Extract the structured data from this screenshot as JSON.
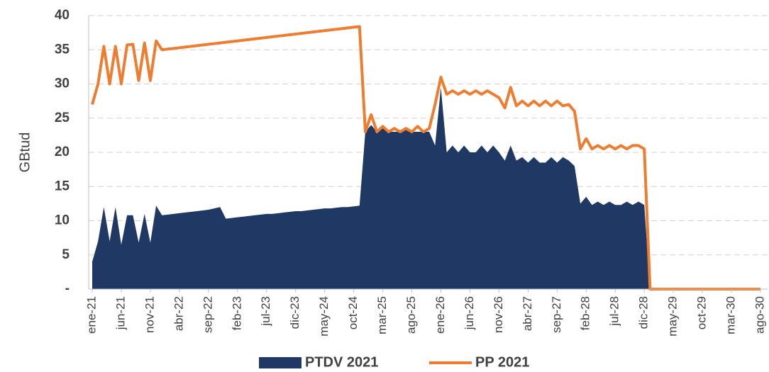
{
  "chart_data": {
    "type": "area",
    "y_label": "GBtud",
    "categories": [
      "ene-21",
      null,
      null,
      null,
      null,
      "jun-21",
      null,
      null,
      null,
      null,
      "nov-21",
      null,
      null,
      null,
      null,
      "abr-22",
      null,
      null,
      null,
      null,
      "sep-22",
      null,
      null,
      null,
      null,
      "feb-23",
      null,
      null,
      null,
      null,
      "jul-23",
      null,
      null,
      null,
      null,
      "dic-23",
      null,
      null,
      null,
      null,
      "may-24",
      null,
      null,
      null,
      null,
      "oct-24",
      null,
      null,
      null,
      null,
      "mar-25",
      null,
      null,
      null,
      null,
      "ago-25",
      null,
      null,
      null,
      null,
      "ene-26",
      null,
      null,
      null,
      null,
      "jun-26",
      null,
      null,
      null,
      null,
      "nov-26",
      null,
      null,
      null,
      null,
      "abr-27",
      null,
      null,
      null,
      null,
      "sep-27",
      null,
      null,
      null,
      null,
      "feb-28",
      null,
      null,
      null,
      null,
      "jul-28",
      null,
      null,
      null,
      null,
      "dic-28",
      null,
      null,
      null,
      null,
      "may-29",
      null,
      null,
      null,
      null,
      "oct-29",
      null,
      null,
      null,
      null,
      "mar-30",
      null,
      null,
      null,
      null,
      "ago-30"
    ],
    "series": [
      {
        "name": "PTDV 2021",
        "type": "area",
        "color": "#1f3864",
        "values": [
          4,
          7,
          12,
          7,
          12,
          6.5,
          10.8,
          10.8,
          6.8,
          11,
          6.8,
          12.2,
          10.8,
          10.9,
          11,
          11.1,
          11.2,
          11.3,
          11.4,
          11.5,
          11.6,
          11.8,
          12,
          10.3,
          10.4,
          10.5,
          10.6,
          10.7,
          10.8,
          10.9,
          11,
          11,
          11.1,
          11.2,
          11.3,
          11.4,
          11.4,
          11.5,
          11.6,
          11.7,
          11.8,
          11.8,
          11.9,
          12,
          12,
          12.1,
          12.2,
          23,
          24,
          23,
          23.5,
          23,
          23,
          23,
          23.5,
          23,
          23,
          23,
          23,
          21,
          29.5,
          20,
          21,
          20,
          21,
          20,
          20,
          21,
          20,
          21,
          20,
          18.8,
          21,
          18.8,
          19.3,
          18.5,
          19.3,
          18.5,
          18.5,
          19.3,
          18.5,
          19.3,
          18.8,
          18,
          12.5,
          13.5,
          12.3,
          12.8,
          12.3,
          12.8,
          12.3,
          12.3,
          12.8,
          12.3,
          12.8,
          12.3,
          0,
          0,
          0,
          0,
          0,
          0,
          0,
          0,
          0,
          0,
          0,
          0,
          0,
          0,
          0,
          0,
          0,
          0,
          0,
          0
        ]
      },
      {
        "name": "PP 2021",
        "type": "line",
        "color": "#ed7d31",
        "values": [
          27,
          30,
          35.5,
          30,
          35.5,
          30,
          35.7,
          35.8,
          30.5,
          36,
          30.5,
          36.3,
          35,
          35.1,
          35.2,
          35.3,
          35.4,
          35.5,
          35.6,
          35.7,
          35.8,
          35.9,
          36,
          36.1,
          36.2,
          36.3,
          36.4,
          36.5,
          36.6,
          36.7,
          36.8,
          36.9,
          37,
          37.1,
          37.2,
          37.3,
          37.4,
          37.5,
          37.6,
          37.7,
          37.8,
          37.9,
          38,
          38.1,
          38.2,
          38.3,
          38.4,
          23,
          25.5,
          23,
          23.8,
          23,
          23.5,
          23,
          23.5,
          23,
          23.8,
          23,
          23.5,
          27,
          31,
          28.5,
          29,
          28.5,
          29,
          28.5,
          29,
          28.5,
          29,
          28.5,
          28,
          26.5,
          29.5,
          26.8,
          27.5,
          26.8,
          27.5,
          26.8,
          27.5,
          26.8,
          27.5,
          26.8,
          27,
          26,
          20.5,
          22,
          20.5,
          21,
          20.5,
          21,
          20.5,
          21,
          20.5,
          21,
          21,
          20.5,
          0,
          0,
          0,
          0,
          0,
          0,
          0,
          0,
          0,
          0,
          0,
          0,
          0,
          0,
          0,
          0,
          0,
          0,
          0,
          0
        ]
      }
    ],
    "ylim": [
      0,
      40
    ],
    "yticks": [
      {
        "value": 0,
        "label": "-"
      },
      5,
      10,
      15,
      20,
      25,
      30,
      35,
      40
    ],
    "grid": true,
    "legend": "bottom"
  }
}
